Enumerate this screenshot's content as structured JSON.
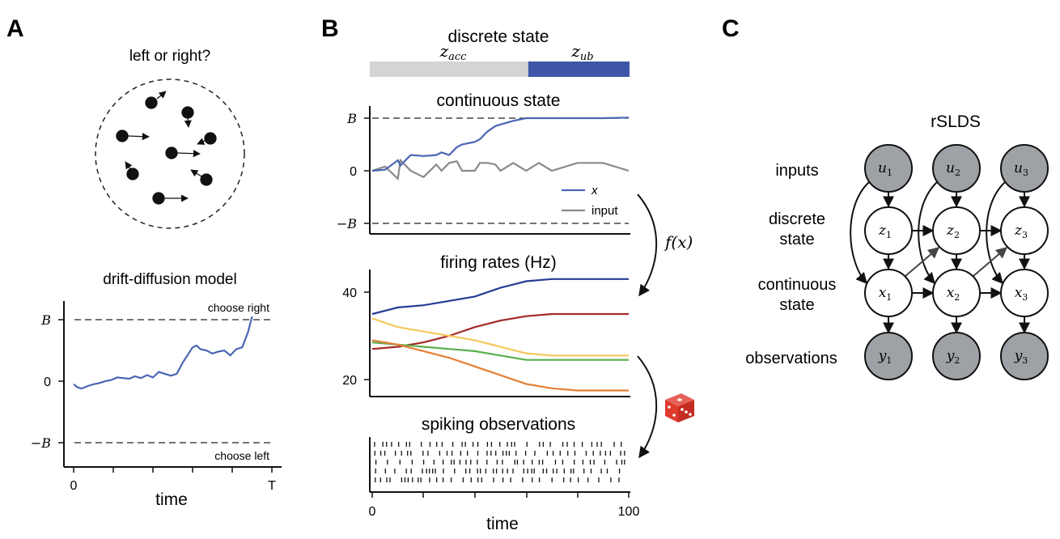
{
  "panels": {
    "a": {
      "letter": "A",
      "question": "left or right?",
      "ddm_title": "drift-diffusion model",
      "choose_right": "choose right",
      "choose_left": "choose left",
      "y_ticks": [
        "B",
        "0",
        "−B"
      ],
      "x_ticks": [
        "0",
        "T"
      ],
      "xlabel": "time"
    },
    "b": {
      "letter": "B",
      "discrete_title": "discrete state",
      "discrete_states": [
        "z_acc",
        "z_ub"
      ],
      "discrete_switch_fraction": 0.61,
      "discrete_colors": [
        "#d4d4d4",
        "#3f56a8"
      ],
      "continuous_title": "continuous state",
      "continuous_y_ticks": [
        "B",
        "0",
        "−B"
      ],
      "legend": [
        "x",
        "input"
      ],
      "fx_label": "f(x)",
      "firing_title": "firing rates (Hz)",
      "firing_y_ticks": [
        "40",
        "20"
      ],
      "spiking_title": "spiking observations",
      "x_ticks": [
        "0",
        "100"
      ],
      "xlabel": "time"
    },
    "c": {
      "letter": "C",
      "title": "rSLDS",
      "row_labels": [
        "inputs",
        "discrete state",
        "continuous state",
        "observations"
      ],
      "nodes": {
        "u": [
          "u1",
          "u2",
          "u3"
        ],
        "z": [
          "z1",
          "z2",
          "z3"
        ],
        "x": [
          "x1",
          "x2",
          "x3"
        ],
        "y": [
          "y1",
          "y2",
          "y3"
        ]
      }
    }
  },
  "colors": {
    "trace_blue": "#4a66b3",
    "input_gray": "#8a8a8a",
    "rate_navy": "#263c93",
    "rate_red": "#a42a25",
    "rate_yellow": "#f6c95d",
    "rate_green": "#5aaf4e",
    "rate_orange": "#e57f33",
    "node_gray": "#9ea2a7",
    "dice_red": "#e03a2e"
  },
  "chart_data": [
    {
      "type": "line",
      "name": "drift-diffusion",
      "x": [
        0,
        0.02,
        0.04,
        0.07,
        0.1,
        0.13,
        0.16,
        0.19,
        0.22,
        0.25,
        0.28,
        0.31,
        0.34,
        0.37,
        0.4,
        0.43,
        0.46,
        0.49,
        0.52,
        0.55,
        0.58,
        0.6,
        0.62,
        0.64,
        0.67,
        0.7,
        0.73,
        0.76,
        0.79,
        0.82,
        0.85,
        0.88,
        0.9
      ],
      "values": [
        -0.05,
        -0.1,
        -0.12,
        -0.08,
        -0.05,
        -0.03,
        0.0,
        0.02,
        0.06,
        0.05,
        0.04,
        0.08,
        0.05,
        0.1,
        0.06,
        0.15,
        0.12,
        0.09,
        0.12,
        0.3,
        0.45,
        0.55,
        0.58,
        0.52,
        0.5,
        0.45,
        0.48,
        0.5,
        0.42,
        0.52,
        0.55,
        0.8,
        1.05
      ],
      "ylim": [
        -1,
        1
      ],
      "xlabel": "time"
    },
    {
      "type": "line",
      "name": "continuous state",
      "x": [
        0,
        5,
        10,
        11,
        15,
        20,
        25,
        27,
        30,
        33,
        35,
        40,
        42,
        45,
        48,
        50,
        55,
        60,
        65,
        70,
        80,
        90,
        100
      ],
      "series": [
        {
          "name": "x",
          "values": [
            0,
            0.02,
            0.2,
            0.1,
            0.3,
            0.28,
            0.3,
            0.35,
            0.3,
            0.45,
            0.5,
            0.55,
            0.6,
            0.75,
            0.85,
            0.88,
            0.95,
            1.0,
            1.0,
            1.0,
            1.0,
            1.0,
            1.01
          ]
        },
        {
          "name": "input",
          "values": [
            0,
            0.08,
            -0.15,
            0.2,
            0,
            -0.12,
            0.12,
            0,
            0.15,
            0.18,
            0,
            0,
            0.15,
            0.15,
            0.12,
            0,
            0.15,
            0,
            0.15,
            0,
            0.15,
            0.15,
            0
          ]
        }
      ],
      "ylim": [
        -1,
        1
      ]
    },
    {
      "type": "line",
      "name": "firing rates (Hz)",
      "x": [
        0,
        10,
        20,
        30,
        40,
        50,
        60,
        70,
        80,
        90,
        100
      ],
      "series": [
        {
          "values": [
            35,
            36.5,
            37,
            38,
            39,
            41,
            42.5,
            43,
            43,
            43,
            43
          ]
        },
        {
          "values": [
            27,
            27.5,
            28.5,
            30,
            32,
            33.5,
            34.5,
            35,
            35,
            35,
            35
          ]
        },
        {
          "values": [
            34,
            32,
            31,
            30,
            29,
            27.5,
            26,
            25.5,
            25.5,
            25.5,
            25.5
          ]
        },
        {
          "values": [
            28.5,
            28,
            27.5,
            27,
            26.5,
            25.5,
            24.5,
            24.5,
            24.5,
            24.5,
            24.5
          ]
        },
        {
          "values": [
            29,
            28,
            26.5,
            25,
            23,
            21,
            19,
            18,
            17.5,
            17.5,
            17.5
          ]
        }
      ],
      "ylim": [
        17,
        46
      ]
    }
  ]
}
